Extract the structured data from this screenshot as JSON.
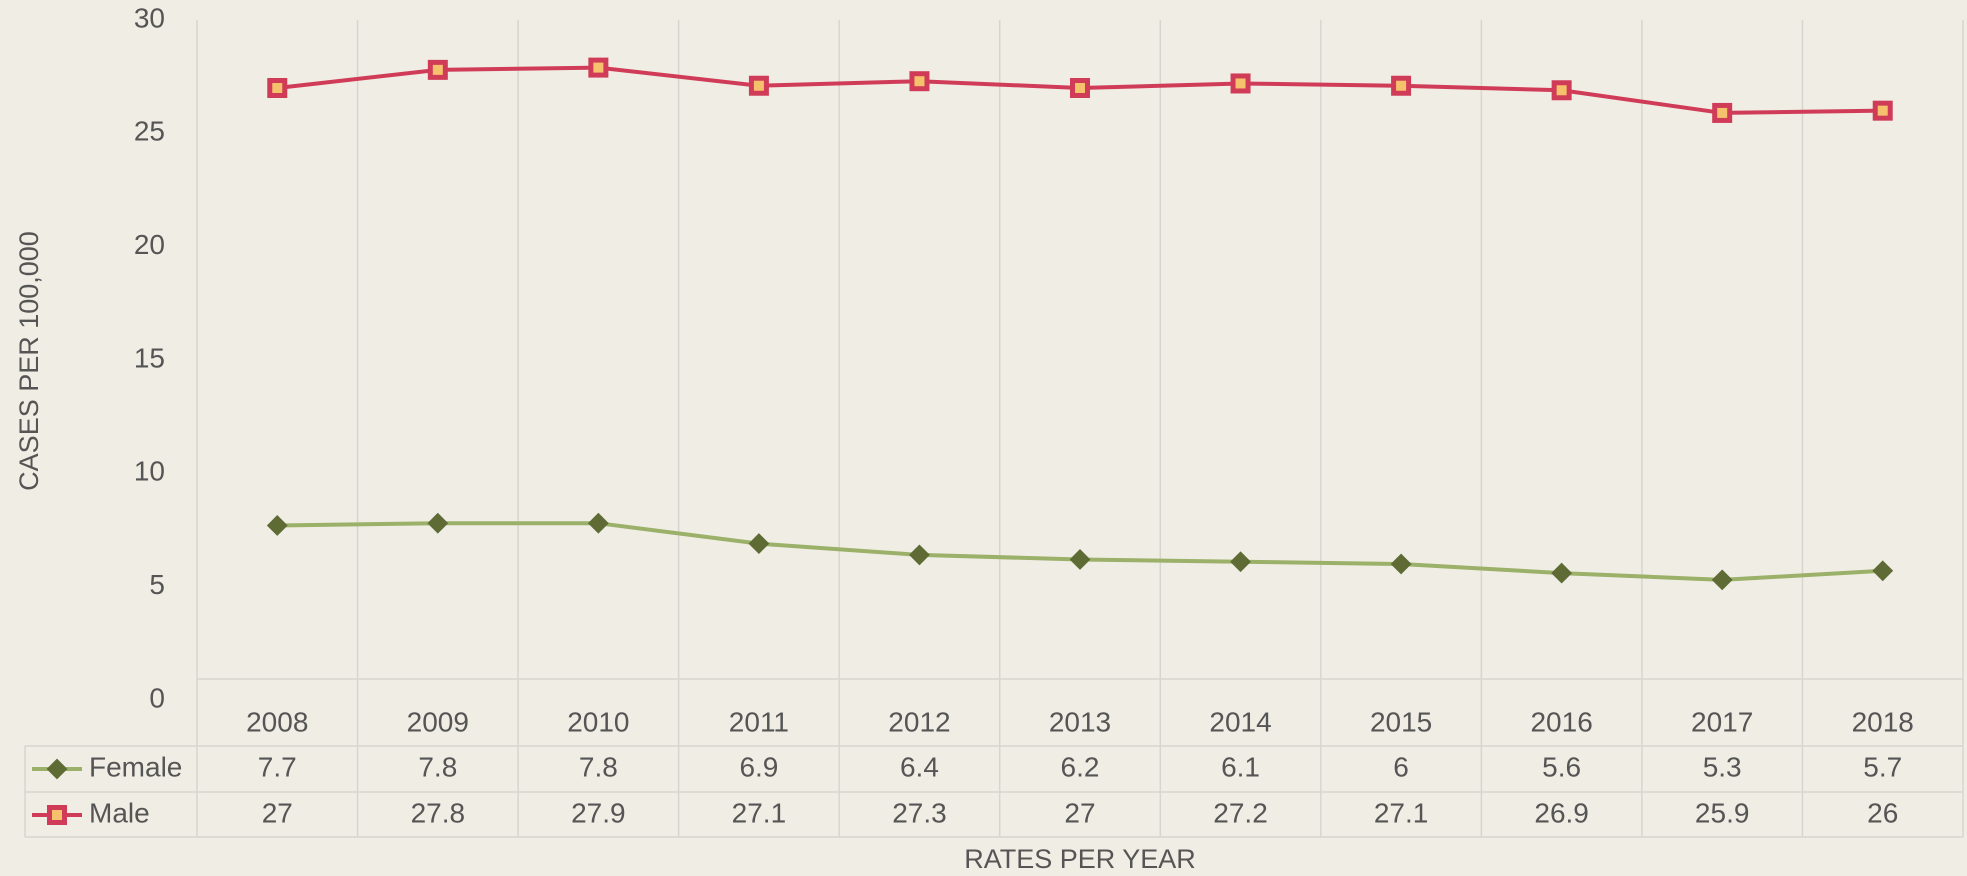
{
  "chart_data": {
    "type": "line",
    "x_label": "RATES PER YEAR",
    "y_label": "CASES PER 100,000",
    "categories": [
      "2008",
      "2009",
      "2010",
      "2011",
      "2012",
      "2013",
      "2014",
      "2015",
      "2016",
      "2017",
      "2018"
    ],
    "series": [
      {
        "name": "Female",
        "color": "#9bb068",
        "marker": "diamond",
        "marker_color": "#5e6b35",
        "values": [
          7.7,
          7.8,
          7.8,
          6.9,
          6.4,
          6.2,
          6.1,
          6,
          5.6,
          5.3,
          5.7
        ]
      },
      {
        "name": "Male",
        "color": "#d03c58",
        "marker": "square",
        "marker_color": "#f6c16c",
        "values": [
          27,
          27.8,
          27.9,
          27.1,
          27.3,
          27,
          27.2,
          27.1,
          26.9,
          25.9,
          26
        ]
      }
    ],
    "ylim": [
      0,
      30
    ],
    "yticks": [
      0,
      5,
      10,
      15,
      20,
      25,
      30
    ]
  }
}
